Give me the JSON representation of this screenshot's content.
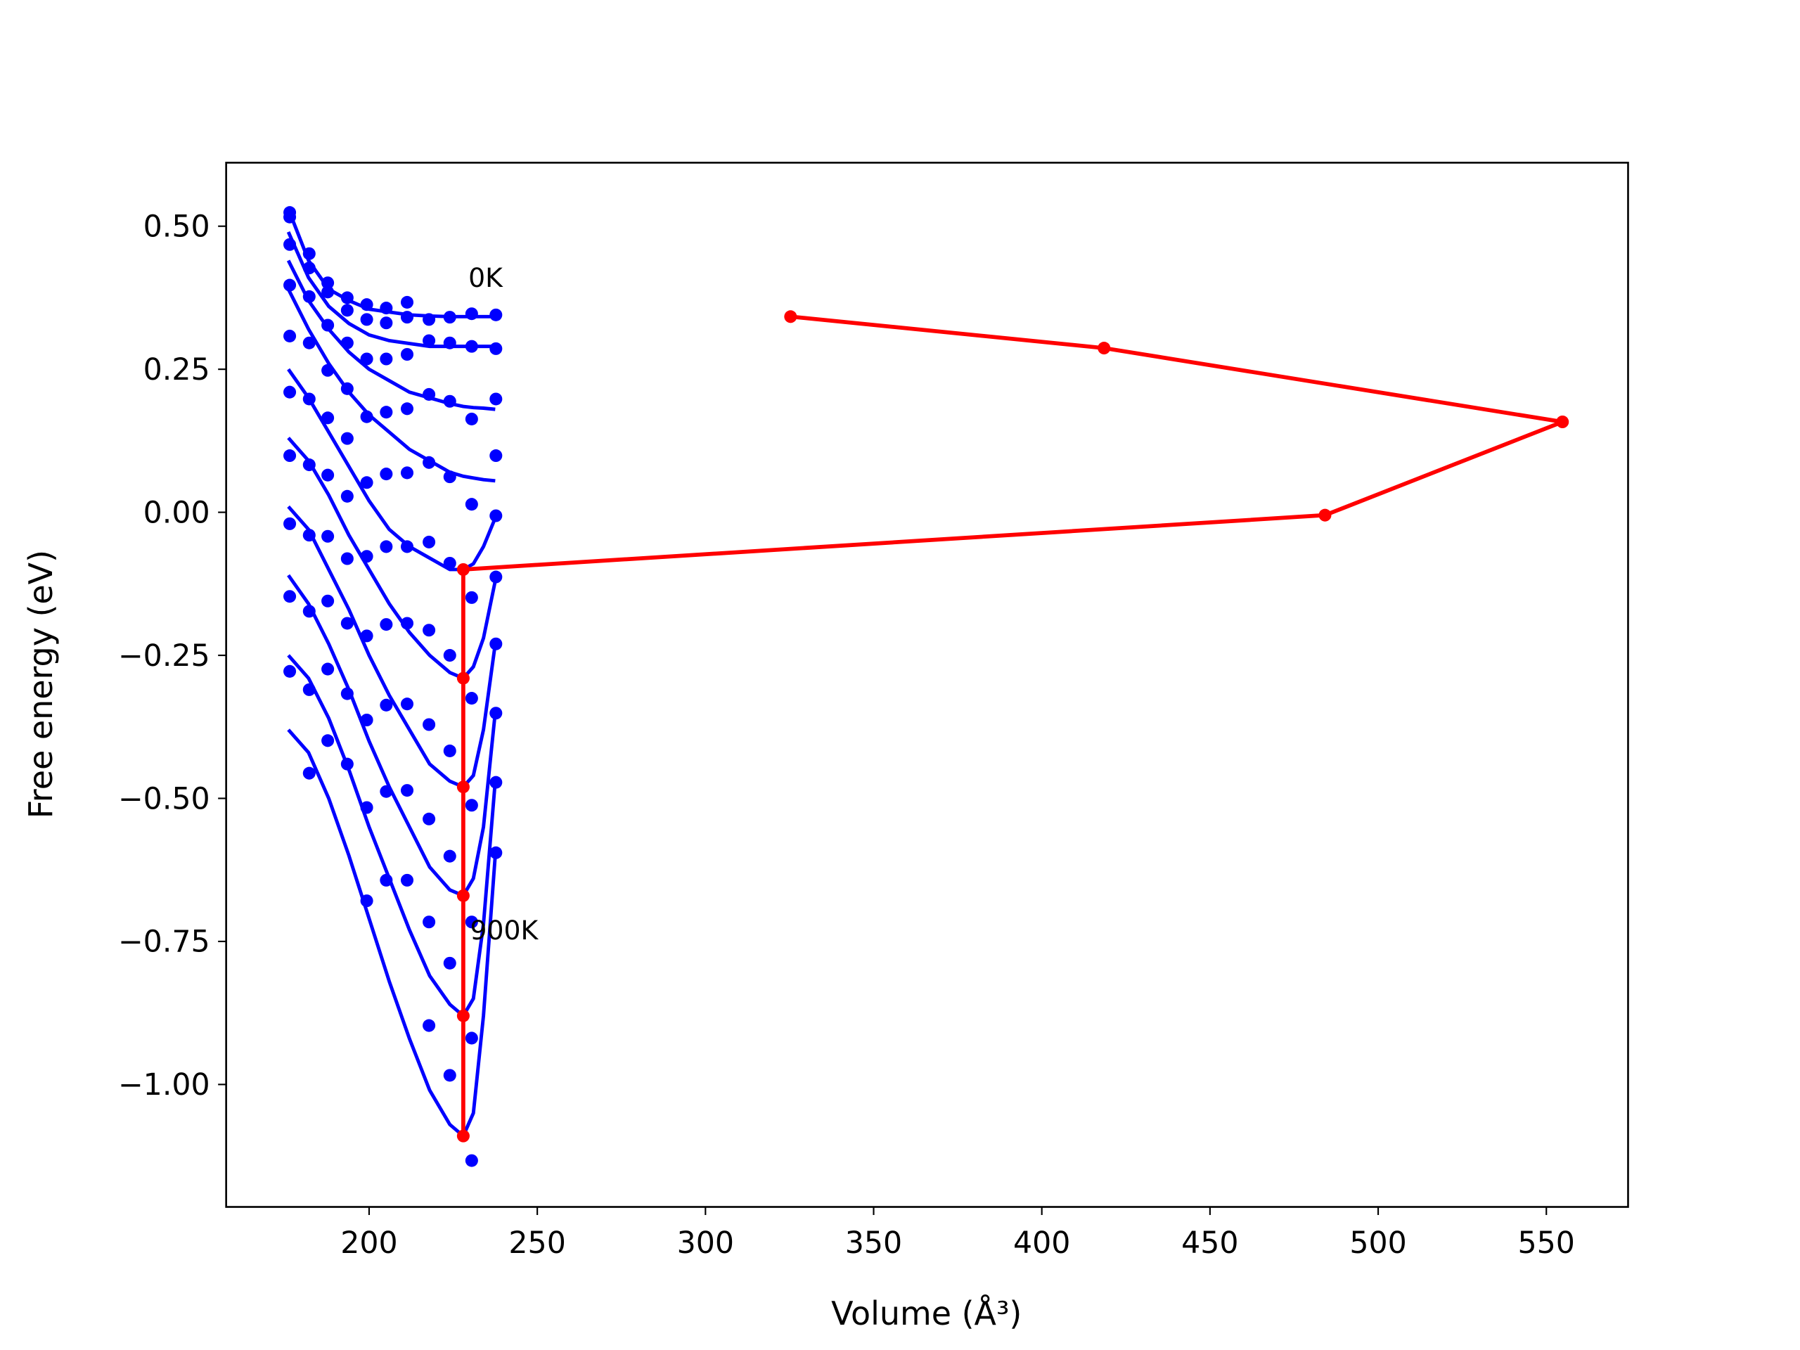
{
  "chart_data": {
    "type": "scatter",
    "xlabel": "Volume (Å³)",
    "ylabel": "Free energy (eV)",
    "xlim": [
      157.5,
      574.3
    ],
    "ylim": [
      -1.214,
      0.611
    ],
    "xticks": [
      200,
      250,
      300,
      350,
      400,
      450,
      500,
      550
    ],
    "yticks": [
      {
        "value": -1.0,
        "label": "−1.00"
      },
      {
        "value": -0.75,
        "label": "−0.75"
      },
      {
        "value": -0.5,
        "label": "−0.50"
      },
      {
        "value": -0.25,
        "label": "−0.25"
      },
      {
        "value": 0.0,
        "label": "0.00"
      },
      {
        "value": 0.25,
        "label": "0.25"
      },
      {
        "value": 0.5,
        "label": "0.50"
      }
    ],
    "x": [
      176.4,
      182.2,
      187.7,
      193.5,
      199.3,
      205.1,
      211.3,
      217.8,
      224,
      230.5,
      237.7
    ],
    "dot_color": "#0000ff",
    "series": [
      {
        "values": [
          0.524,
          0.452,
          0.401,
          0.375,
          0.363,
          0.357,
          0.367,
          0.337,
          0.341,
          0.347,
          0.345
        ]
      },
      {
        "values": [
          0.516,
          0.427,
          0.385,
          0.353,
          0.337,
          0.331,
          0.341,
          0.3,
          0.296,
          0.29,
          0.286
        ]
      },
      {
        "values": [
          0.468,
          0.377,
          0.327,
          0.296,
          0.268,
          0.268,
          0.276,
          0.206,
          0.194,
          0.163,
          0.198
        ]
      },
      {
        "values": [
          0.397,
          0.296,
          0.248,
          0.216,
          0.167,
          0.175,
          0.181,
          0.087,
          0.062,
          0.014,
          0.099
        ]
      },
      {
        "values": [
          0.308,
          0.198,
          0.165,
          0.129,
          0.052,
          0.067,
          0.069,
          -0.052,
          -0.089,
          -0.149,
          -0.006
        ]
      },
      {
        "values": [
          0.21,
          0.083,
          0.065,
          0.028,
          -0.077,
          -0.06,
          -0.06,
          -0.206,
          -0.25,
          -0.325,
          -0.113
        ]
      },
      {
        "values": [
          0.099,
          -0.04,
          -0.042,
          -0.081,
          -0.216,
          -0.196,
          -0.194,
          -0.371,
          -0.417,
          -0.512,
          -0.23
        ]
      },
      {
        "values": [
          -0.02,
          -0.173,
          -0.155,
          -0.194,
          -0.363,
          -0.337,
          -0.335,
          -0.536,
          -0.601,
          -0.716,
          -0.351
        ]
      },
      {
        "values": [
          -0.147,
          -0.31,
          -0.274,
          -0.317,
          -0.516,
          -0.488,
          -0.486,
          -0.716,
          -0.788,
          -0.919,
          -0.472
        ]
      },
      {
        "values": [
          -0.278,
          -0.456,
          -0.399,
          -0.44,
          -0.679,
          -0.643,
          -0.643,
          -0.897,
          -0.984,
          -1.133,
          -0.595
        ]
      }
    ],
    "fit_color": "#0000ff",
    "fit_x": [
      176,
      182,
      188,
      194,
      200,
      206,
      212,
      218,
      224,
      228,
      231,
      234,
      237.5
    ],
    "fits": [
      {
        "values": [
          0.53,
          0.44,
          0.39,
          0.37,
          0.355,
          0.35,
          0.345,
          0.343,
          0.342,
          0.342,
          0.342,
          0.342,
          0.342
        ]
      },
      {
        "values": [
          0.49,
          0.41,
          0.36,
          0.33,
          0.31,
          0.3,
          0.295,
          0.29,
          0.29,
          0.29,
          0.29,
          0.29,
          0.29
        ]
      },
      {
        "values": [
          0.44,
          0.37,
          0.32,
          0.28,
          0.25,
          0.23,
          0.21,
          0.2,
          0.19,
          0.185,
          0.183,
          0.182,
          0.18
        ]
      },
      {
        "values": [
          0.39,
          0.32,
          0.26,
          0.21,
          0.17,
          0.14,
          0.11,
          0.09,
          0.07,
          0.063,
          0.06,
          0.057,
          0.055
        ]
      },
      {
        "values": [
          0.25,
          0.2,
          0.14,
          0.08,
          0.02,
          -0.03,
          -0.06,
          -0.08,
          -0.1,
          -0.1,
          -0.09,
          -0.06,
          -0.01
        ]
      },
      {
        "values": [
          0.13,
          0.09,
          0.03,
          -0.04,
          -0.1,
          -0.16,
          -0.21,
          -0.25,
          -0.28,
          -0.29,
          -0.27,
          -0.22,
          -0.12
        ]
      },
      {
        "values": [
          0.01,
          -0.03,
          -0.1,
          -0.17,
          -0.25,
          -0.32,
          -0.38,
          -0.44,
          -0.47,
          -0.48,
          -0.46,
          -0.38,
          -0.23
        ]
      },
      {
        "values": [
          -0.11,
          -0.16,
          -0.23,
          -0.31,
          -0.4,
          -0.48,
          -0.55,
          -0.62,
          -0.66,
          -0.67,
          -0.64,
          -0.55,
          -0.35
        ]
      },
      {
        "values": [
          -0.25,
          -0.29,
          -0.36,
          -0.45,
          -0.55,
          -0.64,
          -0.73,
          -0.81,
          -0.86,
          -0.88,
          -0.85,
          -0.72,
          -0.47
        ]
      },
      {
        "values": [
          -0.38,
          -0.42,
          -0.5,
          -0.6,
          -0.71,
          -0.82,
          -0.92,
          -1.01,
          -1.07,
          -1.09,
          -1.05,
          -0.88,
          -0.6
        ]
      }
    ],
    "path": {
      "color": "#ff0000",
      "x": [
        228,
        228,
        228,
        228,
        228,
        228,
        484.2,
        554.8,
        418.5,
        325.3
      ],
      "y": [
        -1.09,
        -0.88,
        -0.67,
        -0.48,
        -0.29,
        -0.1,
        -0.005,
        0.158,
        0.287,
        0.342
      ]
    },
    "annotations": [
      {
        "text": "0K",
        "x": 229.5,
        "y": 0.41
      },
      {
        "text": "900K",
        "x": 230,
        "y": -0.73
      }
    ]
  }
}
